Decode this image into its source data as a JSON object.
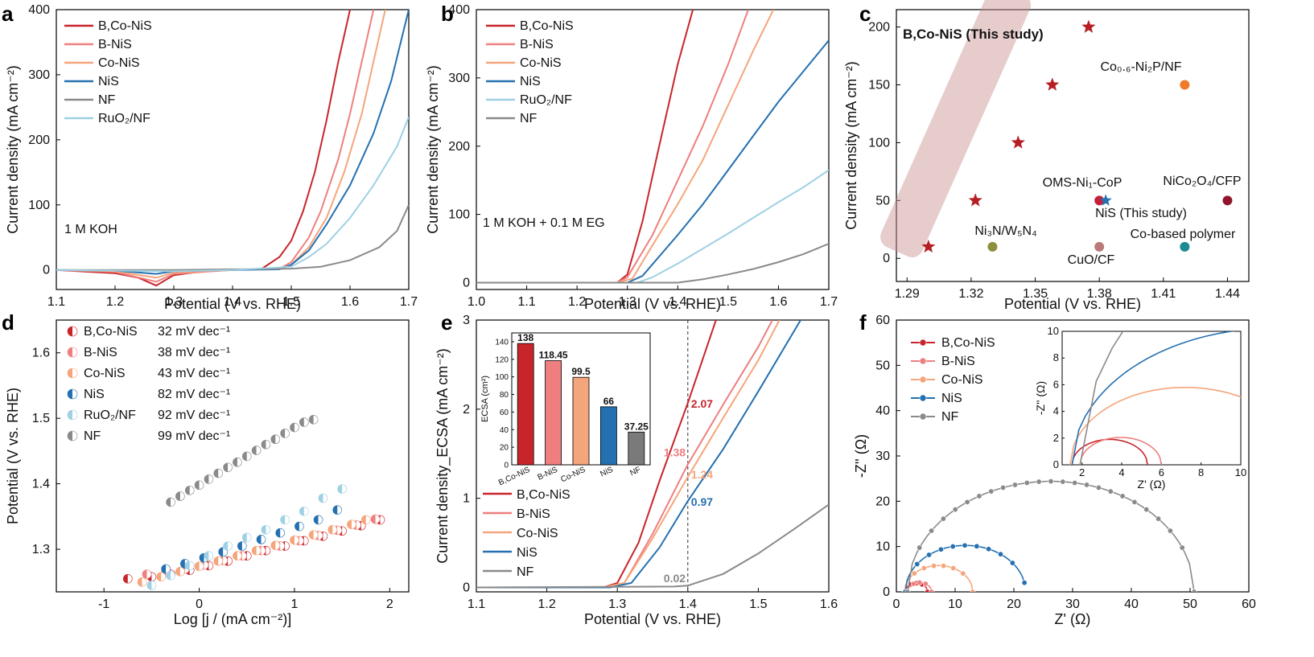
{
  "colors": {
    "BCoNiS": "#c8252b",
    "BNiS": "#ef7f7f",
    "CoNiS": "#f5a57b",
    "NiS": "#2470b0",
    "NF": "#8a8a8a",
    "RuO2": "#9fd0e4",
    "band": "#c98f8f"
  },
  "panels": {
    "a": {
      "label": "a",
      "xlabel": "Potential (V vs. RHE)",
      "ylabel": "Current density (mA cm⁻²)",
      "annotation": "1 M KOH",
      "xticks": [
        "1.1",
        "1.2",
        "1.3",
        "1.4",
        "1.5",
        "1.6",
        "1.7"
      ],
      "yticks": [
        "0",
        "100",
        "200",
        "300",
        "400"
      ],
      "legend": [
        "B,Co-NiS",
        "B-NiS",
        "Co-NiS",
        "NiS",
        "NF",
        "RuO₂/NF"
      ]
    },
    "b": {
      "label": "b",
      "xlabel": "Potential (V vs. RHE)",
      "ylabel": "Current density (mA cm⁻²)",
      "annotation": "1 M KOH + 0.1 M EG",
      "xticks": [
        "1.0",
        "1.1",
        "1.2",
        "1.3",
        "1.4",
        "1.5",
        "1.6",
        "1.7"
      ],
      "yticks": [
        "0",
        "100",
        "200",
        "300",
        "400"
      ],
      "legend": [
        "B,Co-NiS",
        "B-NiS",
        "Co-NiS",
        "NiS",
        "RuO₂/NF",
        "NF"
      ]
    },
    "c": {
      "label": "c",
      "xlabel": "Potential (V vs. RHE)",
      "ylabel": "Current density (mA cm⁻²)",
      "xticks": [
        "1.29",
        "1.32",
        "1.35",
        "1.38",
        "1.41",
        "1.44"
      ],
      "yticks": [
        "0",
        "50",
        "100",
        "150",
        "200"
      ],
      "title_in_plot": "B,Co-NiS (This study)",
      "labels": {
        "co": "Co₀.₆-Ni₂P/NF",
        "oms": "OMS-Ni₁-CoP",
        "nico": "NiCo₂O₄/CFP",
        "nis": "NiS (This study)",
        "ni3n": "Ni₃N/W₅N₄",
        "cuo": "CuO/CF",
        "cob": "Co-based polymer"
      }
    },
    "d": {
      "label": "d",
      "xlabel": "Log [j / (mA cm⁻²)]",
      "ylabel": "Potential (V vs. RHE)",
      "xticks": [
        "-1",
        "0",
        "1",
        "2"
      ],
      "yticks": [
        "1.3",
        "1.4",
        "1.5",
        "1.6"
      ],
      "legend_names": [
        "B,Co-NiS",
        "B-NiS",
        "Co-NiS",
        "NiS",
        "RuO₂/NF",
        "NF"
      ],
      "legend_values": [
        "32 mV dec⁻¹",
        "38 mV dec⁻¹",
        "43 mV dec⁻¹",
        "82 mV dec⁻¹",
        "92 mV dec⁻¹",
        "99 mV dec⁻¹"
      ]
    },
    "e": {
      "label": "e",
      "xlabel": "Potential (V vs. RHE)",
      "ylabel": "Current density_ECSA (mA cm⁻²)",
      "xticks": [
        "1.1",
        "1.2",
        "1.3",
        "1.4",
        "1.5",
        "1.6"
      ],
      "yticks": [
        "0",
        "1",
        "2",
        "3"
      ],
      "legend": [
        "B,Co-NiS",
        "B-NiS",
        "Co-NiS",
        "NiS",
        "NF"
      ],
      "values_at_1_4": [
        "2.07",
        "1.38",
        "1.24",
        "0.97",
        "0.02"
      ],
      "inset": {
        "ylabel": "ECSA (cm²)",
        "yticks": [
          "0",
          "20",
          "40",
          "60",
          "80",
          "100",
          "120",
          "140"
        ],
        "categories": [
          "B,Co-NiS",
          "B-NiS",
          "Co-NiS",
          "NiS",
          "NF"
        ],
        "value_labels": [
          "138",
          "118.45",
          "99.5",
          "66",
          "37.25"
        ]
      }
    },
    "f": {
      "label": "f",
      "xlabel": "Z' (Ω)",
      "ylabel": "-Z'' (Ω)",
      "xticks": [
        "0",
        "10",
        "20",
        "30",
        "40",
        "50",
        "60"
      ],
      "yticks": [
        "0",
        "10",
        "20",
        "30",
        "40",
        "50",
        "60"
      ],
      "legend": [
        "B,Co-NiS",
        "B-NiS",
        "Co-NiS",
        "NiS",
        "NF"
      ],
      "inset": {
        "xlabel": "Z' (Ω)",
        "ylabel": "-Z'' (Ω)",
        "xticks": [
          "2",
          "4",
          "6",
          "8",
          "10"
        ],
        "yticks": [
          "0",
          "2",
          "4",
          "6",
          "8",
          "10"
        ]
      }
    }
  },
  "chart_data": [
    {
      "type": "line",
      "panel": "a",
      "xlim": [
        1.1,
        1.7
      ],
      "ylim": [
        -30,
        400
      ],
      "series": [
        {
          "name": "B,Co-NiS",
          "x": [
            1.1,
            1.2,
            1.24,
            1.27,
            1.3,
            1.35,
            1.4,
            1.45,
            1.48,
            1.5,
            1.52,
            1.54,
            1.56,
            1.58,
            1.6
          ],
          "y": [
            0,
            -5,
            -12,
            -24,
            -8,
            -2,
            0,
            2,
            20,
            45,
            90,
            150,
            230,
            320,
            400
          ]
        },
        {
          "name": "B-NiS",
          "x": [
            1.1,
            1.2,
            1.27,
            1.3,
            1.4,
            1.48,
            1.5,
            1.53,
            1.55,
            1.58,
            1.6,
            1.62,
            1.64
          ],
          "y": [
            0,
            -3,
            -18,
            -6,
            0,
            2,
            12,
            50,
            90,
            170,
            240,
            320,
            400
          ]
        },
        {
          "name": "Co-NiS",
          "x": [
            1.1,
            1.2,
            1.27,
            1.3,
            1.4,
            1.48,
            1.5,
            1.53,
            1.56,
            1.59,
            1.62,
            1.64,
            1.66
          ],
          "y": [
            0,
            -2,
            -12,
            -4,
            0,
            2,
            8,
            35,
            80,
            150,
            240,
            320,
            400
          ]
        },
        {
          "name": "NiS",
          "x": [
            1.1,
            1.2,
            1.27,
            1.3,
            1.4,
            1.48,
            1.5,
            1.53,
            1.56,
            1.6,
            1.64,
            1.67,
            1.7
          ],
          "y": [
            0,
            -1,
            -6,
            -2,
            0,
            1,
            8,
            30,
            70,
            130,
            210,
            290,
            400
          ]
        },
        {
          "name": "NF",
          "x": [
            1.1,
            1.3,
            1.5,
            1.55,
            1.6,
            1.65,
            1.68,
            1.7
          ],
          "y": [
            0,
            0,
            2,
            5,
            15,
            35,
            60,
            100
          ]
        },
        {
          "name": "RuO₂/NF",
          "x": [
            1.1,
            1.3,
            1.4,
            1.5,
            1.53,
            1.56,
            1.6,
            1.64,
            1.68,
            1.7
          ],
          "y": [
            0,
            -2,
            0,
            5,
            20,
            40,
            80,
            130,
            190,
            235
          ]
        }
      ]
    },
    {
      "type": "line",
      "panel": "b",
      "xlim": [
        1.0,
        1.7
      ],
      "ylim": [
        -10,
        400
      ],
      "series": [
        {
          "name": "B,Co-NiS",
          "x": [
            1.0,
            1.28,
            1.3,
            1.33,
            1.36,
            1.4,
            1.43
          ],
          "y": [
            0,
            0,
            12,
            90,
            190,
            320,
            400
          ]
        },
        {
          "name": "B-NiS",
          "x": [
            1.0,
            1.28,
            1.3,
            1.35,
            1.4,
            1.45,
            1.5,
            1.54
          ],
          "y": [
            0,
            0,
            8,
            70,
            150,
            230,
            320,
            400
          ]
        },
        {
          "name": "Co-NiS",
          "x": [
            1.0,
            1.28,
            1.31,
            1.35,
            1.4,
            1.45,
            1.5,
            1.55,
            1.59
          ],
          "y": [
            0,
            0,
            6,
            55,
            115,
            180,
            260,
            340,
            400
          ]
        },
        {
          "name": "NiS",
          "x": [
            1.0,
            1.3,
            1.33,
            1.4,
            1.45,
            1.5,
            1.55,
            1.6,
            1.65,
            1.7
          ],
          "y": [
            0,
            0,
            10,
            70,
            115,
            165,
            215,
            265,
            310,
            355
          ]
        },
        {
          "name": "RuO₂/NF",
          "x": [
            1.0,
            1.32,
            1.35,
            1.4,
            1.45,
            1.5,
            1.55,
            1.6,
            1.65,
            1.7
          ],
          "y": [
            0,
            0,
            8,
            28,
            50,
            72,
            95,
            118,
            140,
            165
          ]
        },
        {
          "name": "NF",
          "x": [
            1.0,
            1.4,
            1.45,
            1.5,
            1.55,
            1.6,
            1.65,
            1.7
          ],
          "y": [
            0,
            0,
            5,
            12,
            20,
            30,
            42,
            57
          ]
        }
      ]
    },
    {
      "type": "scatter",
      "panel": "c",
      "xlim": [
        1.285,
        1.45
      ],
      "ylim": [
        -20,
        215
      ],
      "series": [
        {
          "name": "B,Co-NiS (This study)",
          "x": [
            1.3,
            1.322,
            1.342,
            1.358,
            1.375
          ],
          "y": [
            10,
            50,
            100,
            150,
            200
          ]
        },
        {
          "name": "Co₀.₆-Ni₂P/NF",
          "x": [
            1.42
          ],
          "y": [
            150
          ]
        },
        {
          "name": "OMS-Ni₁-CoP",
          "x": [
            1.38
          ],
          "y": [
            50
          ]
        },
        {
          "name": "NiS (This study)",
          "x": [
            1.383
          ],
          "y": [
            50
          ]
        },
        {
          "name": "NiCo₂O₄/CFP",
          "x": [
            1.44
          ],
          "y": [
            50
          ]
        },
        {
          "name": "Ni₃N/W₅N₄",
          "x": [
            1.33
          ],
          "y": [
            10
          ]
        },
        {
          "name": "CuO/CF",
          "x": [
            1.38
          ],
          "y": [
            10
          ]
        },
        {
          "name": "Co-based polymer",
          "x": [
            1.42
          ],
          "y": [
            10
          ]
        }
      ]
    },
    {
      "type": "scatter",
      "panel": "d",
      "xlim": [
        -1.5,
        2.2
      ],
      "ylim": [
        1.235,
        1.65
      ],
      "series": [
        {
          "name": "B,Co-NiS",
          "x": [
            -0.75,
            -0.5,
            -0.3,
            -0.1,
            0.1,
            0.3,
            0.5,
            0.7,
            0.9,
            1.1,
            1.3,
            1.5,
            1.7,
            1.9
          ],
          "y": [
            1.255,
            1.258,
            1.262,
            1.268,
            1.275,
            1.282,
            1.29,
            1.298,
            1.305,
            1.313,
            1.32,
            1.328,
            1.336,
            1.345
          ]
        },
        {
          "name": "B-NiS",
          "x": [
            -0.55,
            -0.35,
            -0.15,
            0.05,
            0.25,
            0.45,
            0.65,
            0.85,
            1.05,
            1.25,
            1.45,
            1.65,
            1.85
          ],
          "y": [
            1.262,
            1.265,
            1.27,
            1.276,
            1.283,
            1.29,
            1.298,
            1.305,
            1.313,
            1.321,
            1.329,
            1.337,
            1.346
          ]
        },
        {
          "name": "Co-NiS",
          "x": [
            -0.6,
            -0.4,
            -0.2,
            0,
            0.2,
            0.4,
            0.6,
            0.8,
            1.0,
            1.2,
            1.4,
            1.6,
            1.75
          ],
          "y": [
            1.25,
            1.258,
            1.266,
            1.274,
            1.282,
            1.29,
            1.298,
            1.306,
            1.314,
            1.322,
            1.33,
            1.338,
            1.345
          ]
        },
        {
          "name": "NiS",
          "x": [
            -0.35,
            -0.15,
            0.05,
            0.25,
            0.45,
            0.65,
            0.85,
            1.05,
            1.25,
            1.45
          ],
          "y": [
            1.27,
            1.278,
            1.287,
            1.296,
            1.305,
            1.315,
            1.325,
            1.335,
            1.345,
            1.36
          ]
        },
        {
          "name": "RuO₂/NF",
          "x": [
            -0.5,
            -0.3,
            -0.1,
            0.1,
            0.3,
            0.5,
            0.7,
            0.9,
            1.1,
            1.3,
            1.5
          ],
          "y": [
            1.245,
            1.26,
            1.275,
            1.29,
            1.305,
            1.318,
            1.33,
            1.345,
            1.358,
            1.378,
            1.392
          ]
        },
        {
          "name": "NF",
          "x": [
            -0.3,
            -0.2,
            -0.1,
            0,
            0.1,
            0.2,
            0.3,
            0.4,
            0.5,
            0.6,
            0.7,
            0.8,
            0.9,
            1.0,
            1.1,
            1.2
          ],
          "y": [
            1.372,
            1.381,
            1.39,
            1.398,
            1.407,
            1.416,
            1.425,
            1.433,
            1.442,
            1.451,
            1.46,
            1.468,
            1.477,
            1.486,
            1.494,
            1.498
          ]
        }
      ]
    },
    {
      "type": "line",
      "panel": "e",
      "xlim": [
        1.1,
        1.6
      ],
      "ylim": [
        -0.05,
        3
      ],
      "series": [
        {
          "name": "B,Co-NiS",
          "x": [
            1.1,
            1.28,
            1.3,
            1.33,
            1.36,
            1.4,
            1.44
          ],
          "y": [
            0,
            0,
            0.05,
            0.5,
            1.2,
            2.07,
            3.0
          ]
        },
        {
          "name": "B-NiS",
          "x": [
            1.1,
            1.28,
            1.31,
            1.35,
            1.4,
            1.45,
            1.5,
            1.52
          ],
          "y": [
            0,
            0,
            0.05,
            0.6,
            1.38,
            2.05,
            2.7,
            3.0
          ]
        },
        {
          "name": "Co-NiS",
          "x": [
            1.1,
            1.28,
            1.31,
            1.35,
            1.4,
            1.45,
            1.5,
            1.53
          ],
          "y": [
            0,
            0,
            0.05,
            0.55,
            1.24,
            1.9,
            2.55,
            3.0
          ]
        },
        {
          "name": "NiS",
          "x": [
            1.1,
            1.29,
            1.32,
            1.36,
            1.4,
            1.45,
            1.5,
            1.56
          ],
          "y": [
            0,
            0,
            0.05,
            0.45,
            0.97,
            1.55,
            2.2,
            3.0
          ]
        },
        {
          "name": "NF",
          "x": [
            1.1,
            1.38,
            1.4,
            1.45,
            1.5,
            1.55,
            1.6
          ],
          "y": [
            0,
            0.01,
            0.02,
            0.15,
            0.38,
            0.65,
            0.93
          ]
        }
      ]
    },
    {
      "type": "bar",
      "panel": "e-inset",
      "categories": [
        "B,Co-NiS",
        "B-NiS",
        "Co-NiS",
        "NiS",
        "NF"
      ],
      "values": [
        138,
        118.45,
        99.5,
        66,
        37.25
      ],
      "ylabel": "ECSA (cm²)",
      "ylim": [
        0,
        150
      ]
    },
    {
      "type": "scatter",
      "panel": "f",
      "xlim": [
        0,
        60
      ],
      "ylim": [
        0,
        60
      ],
      "series": [
        {
          "name": "B,Co-NiS",
          "center": 3.4,
          "radius": 1.9
        },
        {
          "name": "B-NiS",
          "center": 3.95,
          "radius": 2.05
        },
        {
          "name": "Co-NiS",
          "center": 7.2,
          "radius": 5.8
        },
        {
          "name": "NiS",
          "center": 11.75,
          "radius": 10.25,
          "end_x": 21.8
        },
        {
          "name": "NF",
          "center": 26.3,
          "radius": 24.4
        }
      ]
    }
  ]
}
